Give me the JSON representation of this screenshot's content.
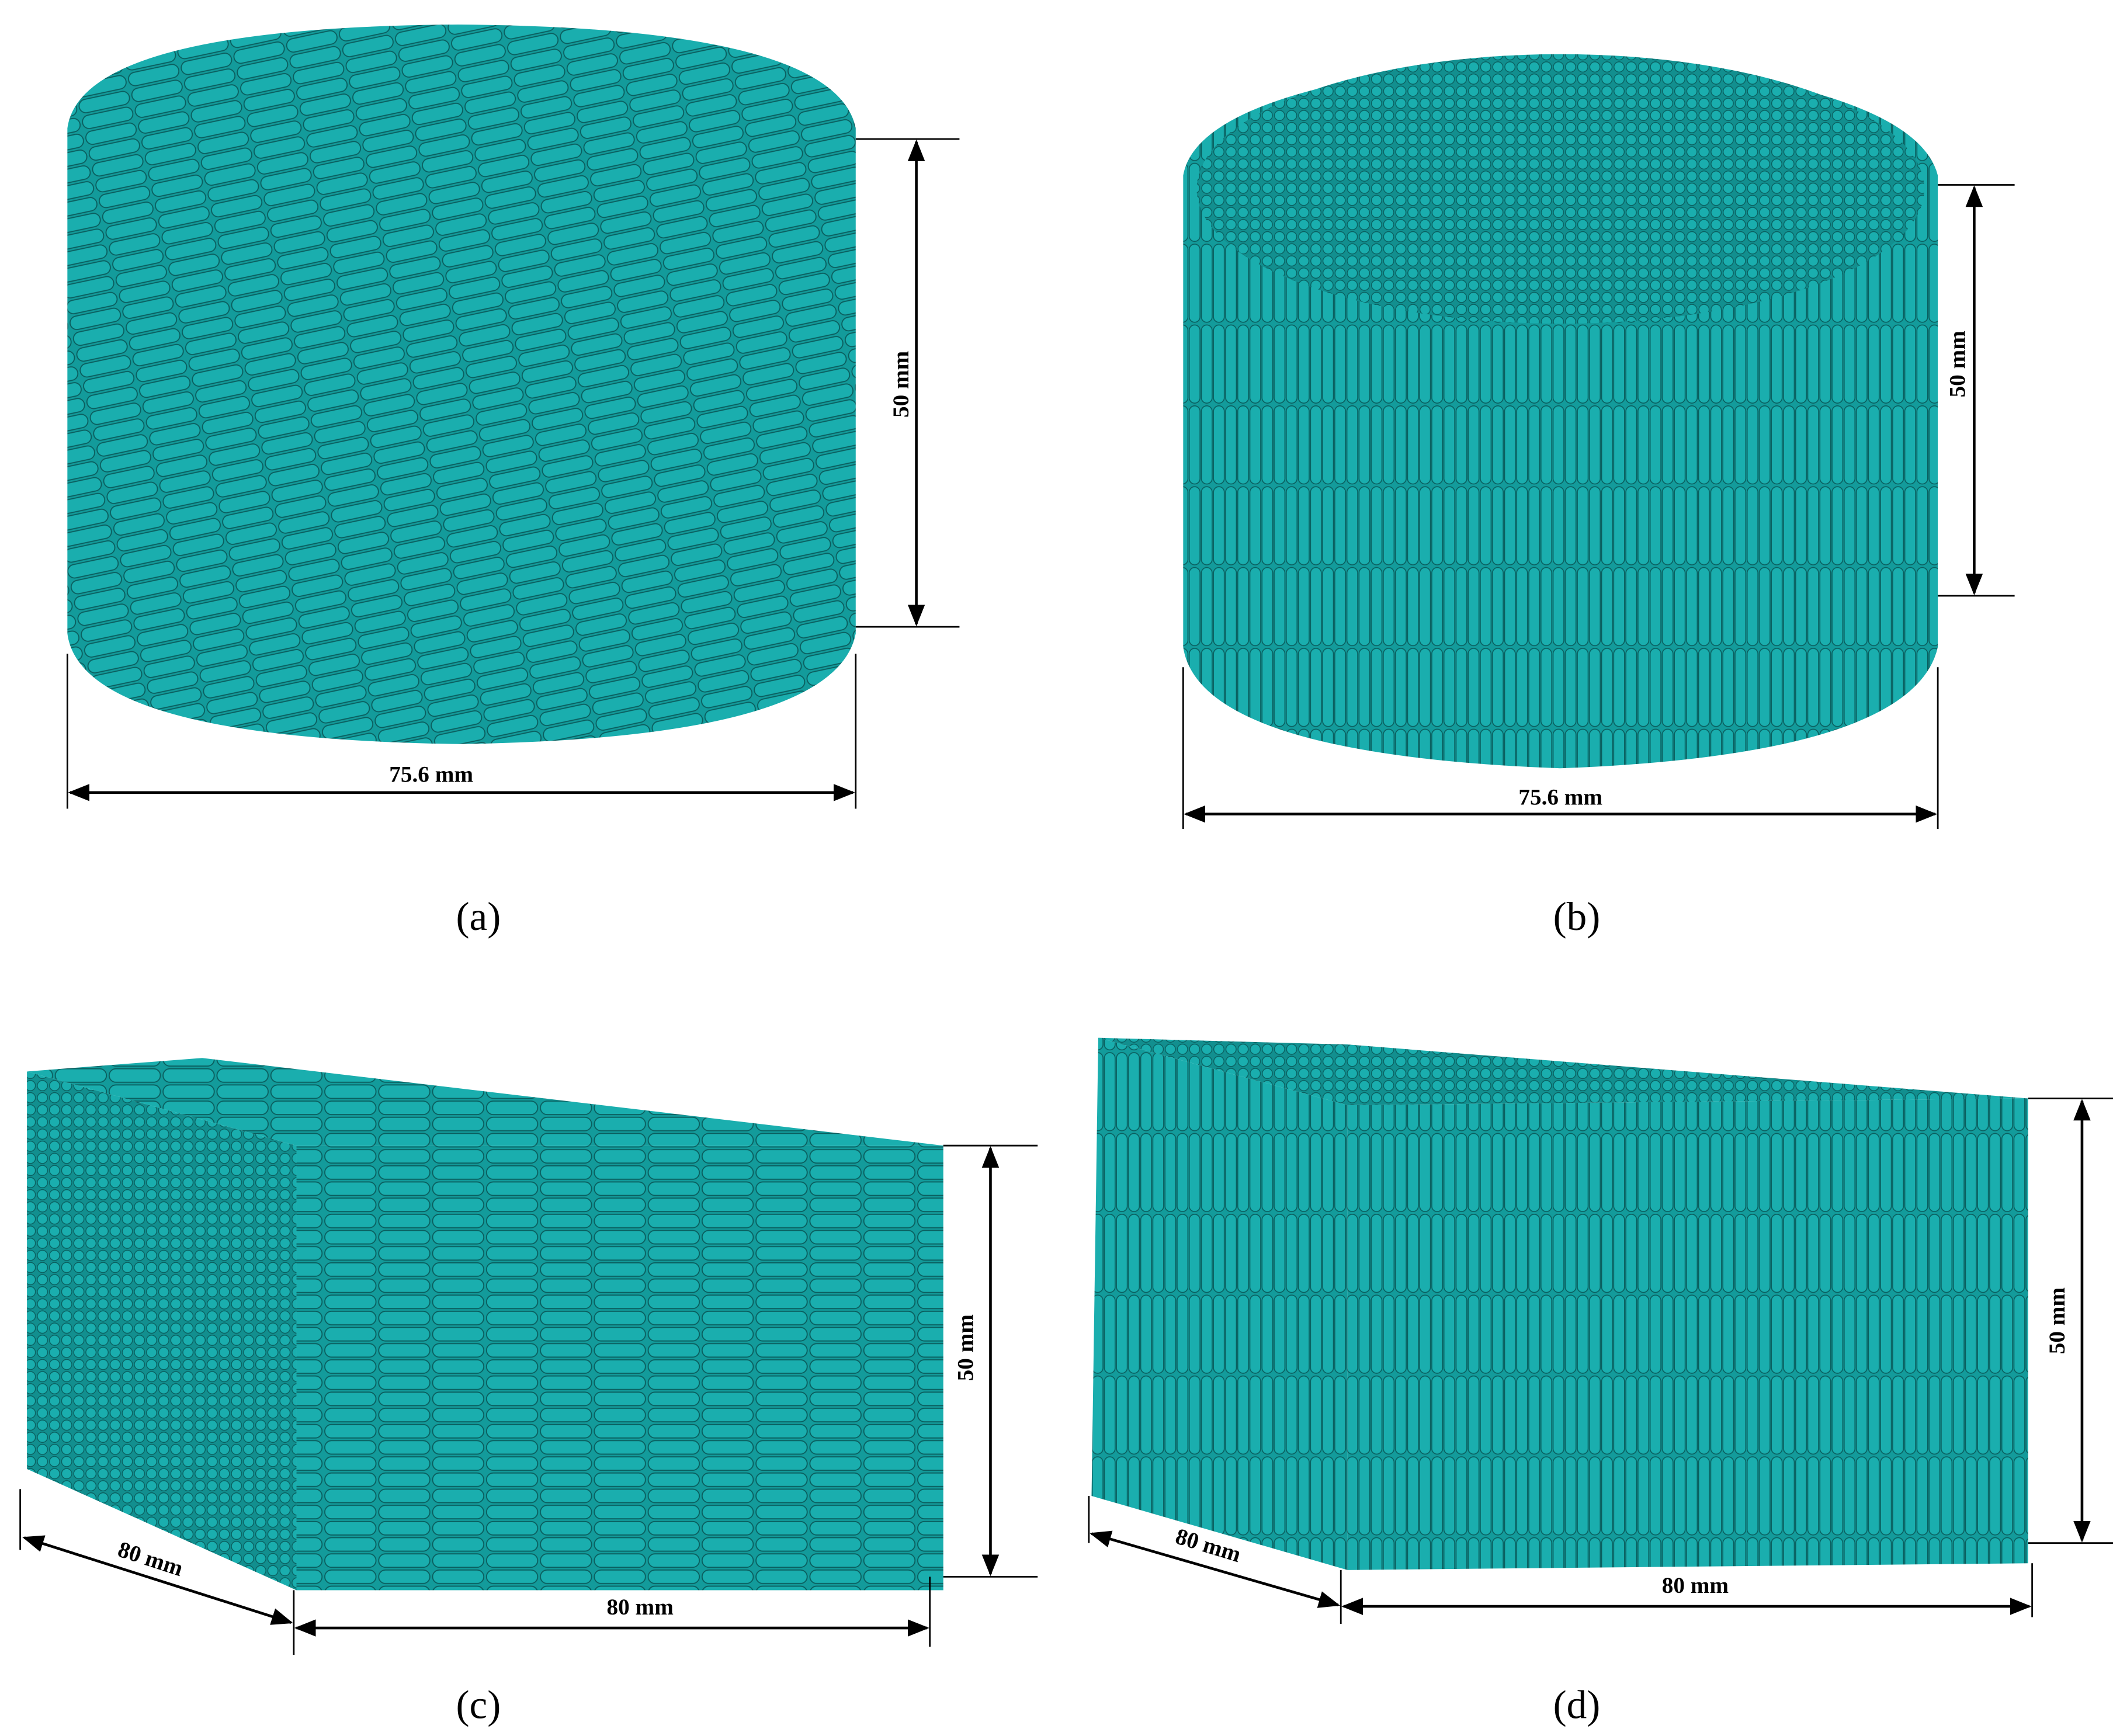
{
  "panels": [
    {
      "label": "(a)",
      "height_label": "50 mm",
      "width_label": "75.6 mm"
    },
    {
      "label": "(b)",
      "height_label": "50 mm",
      "width_label": "75.6 mm"
    },
    {
      "label": "(c)",
      "height_label": "50 mm",
      "depth_label": "80 mm",
      "width_label": "80 mm"
    },
    {
      "label": "(d)",
      "height_label": "50 mm",
      "depth_label": "80 mm",
      "width_label": "80 mm"
    }
  ]
}
